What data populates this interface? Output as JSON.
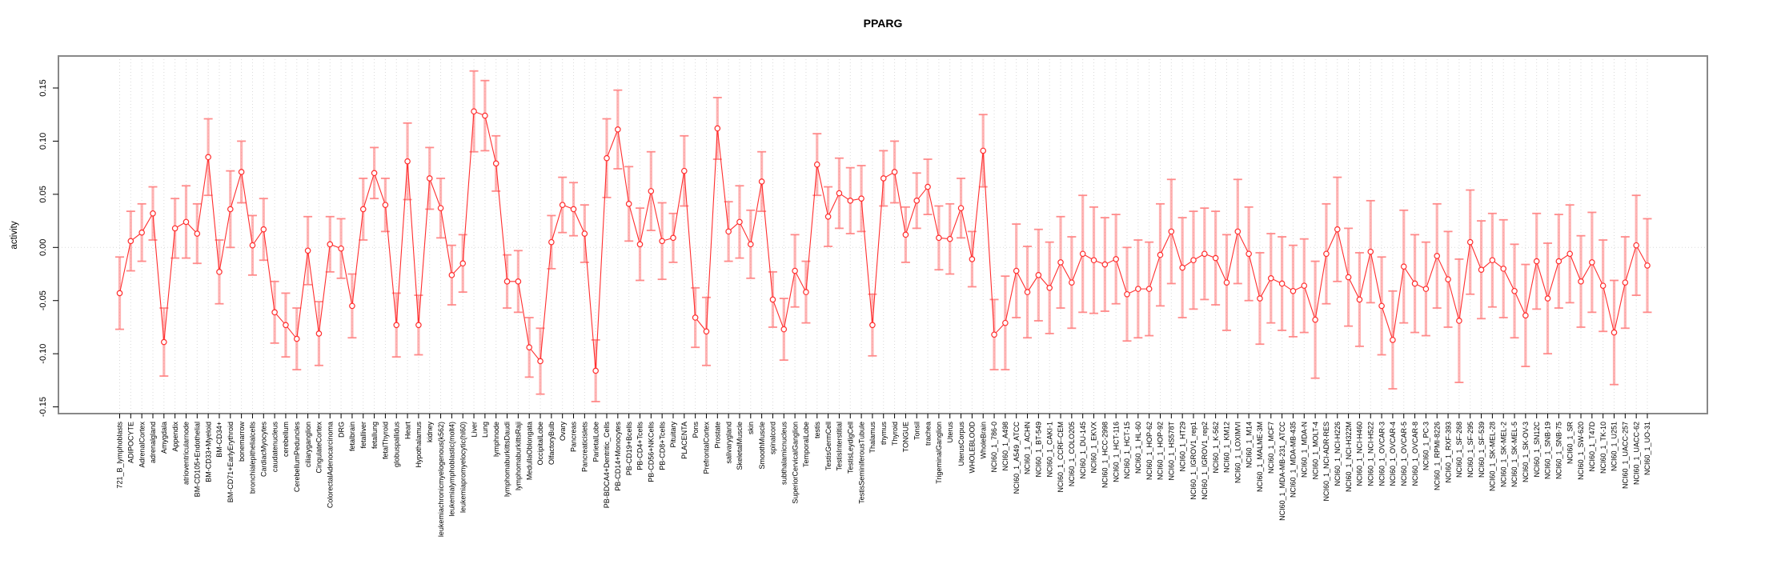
{
  "chart_data": {
    "type": "line",
    "title": "PPARG",
    "ylabel": "activity",
    "xlabel": "",
    "ylim": [
      -0.17,
      0.175
    ],
    "ytick_labels": [
      "-0.15",
      "-0.10",
      "-0.05",
      "0.00",
      "0.05",
      "0.10",
      "0.15"
    ],
    "ytick_values": [
      -0.15,
      -0.1,
      -0.05,
      0.0,
      0.05,
      0.1,
      0.15
    ],
    "grid": "vertical-dotted-per-category",
    "zero_line": true,
    "legend": "none",
    "marker": "open-circle",
    "line_color": "#ff2e2e",
    "errorbar_color": "#ff8080",
    "grid_color": "#d9d9d9",
    "border_color": "#888888",
    "categories": [
      "721_B_lymphoblasts",
      "ADIPOCYTE",
      "AdrenalCortex",
      "adrenalgland",
      "Amygdala",
      "Appendix",
      "atrioventricularnode",
      "BM-CD105+Endothelial",
      "BM-CD33+Myeloid",
      "BM-CD34+",
      "BM-CD71+EarlyErythroid",
      "bonemarrow",
      "bronchialepithelialcells",
      "CardiacMyocytes",
      "caudatenucleus",
      "cerebellum",
      "CerebellumPeduncles",
      "ciliaryganglion",
      "CingulateCortex",
      "ColorectalAdenocarcinoma",
      "DRG",
      "fetalbrain",
      "fetalliver",
      "fetallung",
      "fetalThyroid",
      "globuspallidus",
      "Heart",
      "Hypothalamus",
      "kidney",
      "leukemiachronicmyelogenous(k562)",
      "leukemialymphoblastic(molt4)",
      "leukemiapromyelocytic(hl60)",
      "Liver",
      "Lung",
      "lymphnode",
      "lymphomaburkittsDaudi",
      "lymphomaburkittsRaji",
      "MedullaOblongata",
      "OccipitalLobe",
      "OlfactoryBulb",
      "Ovary",
      "Pancreas",
      "Pancreaticislets",
      "ParietalLobe",
      "PB-BDCA4+Dentritic_Cells",
      "PB-CD14+Monocytes",
      "PB-CD19+Bcells",
      "PB-CD4+Tcells",
      "PB-CD56+NKCells",
      "PB-CD8+Tcells",
      "Pituitary",
      "PLACENTA",
      "Pons",
      "PrefrontalCortex",
      "Prostate",
      "salivarygland",
      "SkeletalMuscle",
      "skin",
      "SmoothMuscle",
      "spinalcord",
      "subthalamicnucleus",
      "SuperiorCervicalGanglion",
      "TemporalLobe",
      "testis",
      "TestisGermCell",
      "TestisInterstitial",
      "TestisLeydigCell",
      "TestisSeminiferousTubule",
      "Thalamus",
      "thymus",
      "Thyroid",
      "TONGUE",
      "Tonsil",
      "trachea",
      "TrigeminalGanglion",
      "Uterus",
      "UterusCorpus",
      "WHOLEBLOOD",
      "WholeBrain",
      "NCI60_1_786-0",
      "NCI60_1_A498",
      "NCI60_1_A549_ATCC",
      "NCI60_1_ACHN",
      "NCI60_1_BT-549",
      "NCI60_1_CAKI-1",
      "NCI60_1_CCRF-CEM",
      "NCI60_1_COLO205",
      "NCI60_1_DU-145",
      "NCI60_1_EKVX",
      "NCI60_1_HCC-2998",
      "NCI60_1_HCT-116",
      "NCI60_1_HCT-15",
      "NCI60_1_HL-60",
      "NCI60_1_HOP-62",
      "NCI60_1_HOP-92",
      "NCI60_1_HS578T",
      "NCI60_1_HT29",
      "NCI60_1_IGROV1_rep1",
      "NCI60_1_IGROV1_rep2",
      "NCI60_1_K-562",
      "NCI60_1_KM12",
      "NCI60_1_LOXIMVI",
      "NCI60_1_M14",
      "NCI60_1_MALME-3M",
      "NCI60_1_MCF7",
      "NCI60_1_MDA-MB-231_ATCC",
      "NCI60_1_MDA-MB-435",
      "NCI60_1_MDA-N",
      "NCI60_1_MOLT-4",
      "NCI60_1_NCI-ADR-RES",
      "NCI60_1_NCI-H226",
      "NCI60_1_NCI-H322M",
      "NCI60_1_NCI-H460",
      "NCI60_1_NCI-H522",
      "NCI60_1_OVCAR-3",
      "NCI60_1_OVCAR-4",
      "NCI60_1_OVCAR-5",
      "NCI60_1_OVCAR-8",
      "NCI60_1_PC-3",
      "NCI60_1_RPMI-8226",
      "NCI60_1_RXF-393",
      "NCI60_1_SF-268",
      "NCI60_1_SF-295",
      "NCI60_1_SF-539",
      "NCI60_1_SK-MEL-28",
      "NCI60_1_SK-MEL-2",
      "NCI60_1_SK-MEL-5",
      "NCI60_1_SK-OV-3",
      "NCI60_1_SN12C",
      "NCI60_1_SNB-19",
      "NCI60_1_SNB-75",
      "NCI60_1_SR",
      "NCI60_1_SW-620",
      "NCI60_1_T47D",
      "NCI60_1_TK-10",
      "NCI60_1_U251",
      "NCI60_1_UACC-257",
      "NCI60_1_UACC-62",
      "NCI60_1_UO-31"
    ],
    "values": [
      -0.043,
      0.006,
      0.014,
      0.032,
      -0.089,
      0.018,
      0.024,
      0.013,
      0.085,
      -0.023,
      0.036,
      0.071,
      0.002,
      0.017,
      -0.061,
      -0.073,
      -0.086,
      -0.003,
      -0.081,
      0.003,
      -0.001,
      -0.055,
      0.036,
      0.07,
      0.04,
      -0.073,
      0.081,
      -0.073,
      0.065,
      0.037,
      -0.026,
      -0.015,
      0.128,
      0.124,
      0.079,
      -0.032,
      -0.032,
      -0.094,
      -0.107,
      0.005,
      0.04,
      0.036,
      0.013,
      -0.116,
      0.084,
      0.111,
      0.041,
      0.003,
      0.053,
      0.006,
      0.009,
      0.072,
      -0.066,
      -0.079,
      0.112,
      0.015,
      0.024,
      0.003,
      0.062,
      -0.049,
      -0.077,
      -0.022,
      -0.042,
      0.078,
      0.029,
      0.051,
      0.044,
      0.046,
      -0.073,
      0.065,
      0.071,
      0.012,
      0.044,
      0.057,
      0.009,
      0.008,
      0.037,
      -0.011,
      0.091,
      -0.082,
      -0.071,
      -0.022,
      -0.042,
      -0.026,
      -0.038,
      -0.014,
      -0.033,
      -0.006,
      -0.012,
      -0.016,
      -0.011,
      -0.044,
      -0.039,
      -0.039,
      -0.007,
      0.015,
      -0.019,
      -0.012,
      -0.006,
      -0.01,
      -0.033,
      0.015,
      -0.006,
      -0.048,
      -0.029,
      -0.034,
      -0.041,
      -0.036,
      -0.068,
      -0.006,
      0.017,
      -0.028,
      -0.049,
      -0.004,
      -0.055,
      -0.087,
      -0.018,
      -0.034,
      -0.039,
      -0.008,
      -0.03,
      -0.069,
      0.005,
      -0.021,
      -0.012,
      -0.02,
      -0.041,
      -0.064,
      -0.013,
      -0.048,
      -0.013,
      -0.006,
      -0.032,
      -0.014,
      -0.036,
      -0.08,
      -0.033,
      0.002,
      -0.017
    ],
    "errors": [
      0.034,
      0.028,
      0.027,
      0.025,
      0.032,
      0.028,
      0.034,
      0.028,
      0.036,
      0.03,
      0.036,
      0.029,
      0.028,
      0.029,
      0.029,
      0.03,
      0.029,
      0.032,
      0.03,
      0.026,
      0.028,
      0.03,
      0.029,
      0.024,
      0.025,
      0.03,
      0.036,
      0.028,
      0.029,
      0.028,
      0.028,
      0.027,
      0.038,
      0.033,
      0.026,
      0.025,
      0.029,
      0.028,
      0.031,
      0.025,
      0.026,
      0.025,
      0.027,
      0.029,
      0.037,
      0.037,
      0.035,
      0.034,
      0.037,
      0.036,
      0.023,
      0.033,
      0.028,
      0.032,
      0.029,
      0.028,
      0.034,
      0.032,
      0.028,
      0.026,
      0.029,
      0.034,
      0.029,
      0.029,
      0.028,
      0.033,
      0.031,
      0.031,
      0.029,
      0.026,
      0.029,
      0.026,
      0.026,
      0.026,
      0.03,
      0.033,
      0.028,
      0.026,
      0.034,
      0.033,
      0.044,
      0.044,
      0.043,
      0.043,
      0.043,
      0.043,
      0.043,
      0.055,
      0.05,
      0.044,
      0.042,
      0.044,
      0.046,
      0.044,
      0.048,
      0.049,
      0.047,
      0.046,
      0.043,
      0.044,
      0.045,
      0.049,
      0.044,
      0.043,
      0.042,
      0.044,
      0.043,
      0.044,
      0.055,
      0.047,
      0.049,
      0.046,
      0.044,
      0.048,
      0.046,
      0.046,
      0.053,
      0.046,
      0.044,
      0.049,
      0.045,
      0.058,
      0.049,
      0.046,
      0.044,
      0.046,
      0.044,
      0.048,
      0.045,
      0.052,
      0.044,
      0.046,
      0.043,
      0.047,
      0.043,
      0.049,
      0.043,
      0.047,
      0.044
    ]
  }
}
